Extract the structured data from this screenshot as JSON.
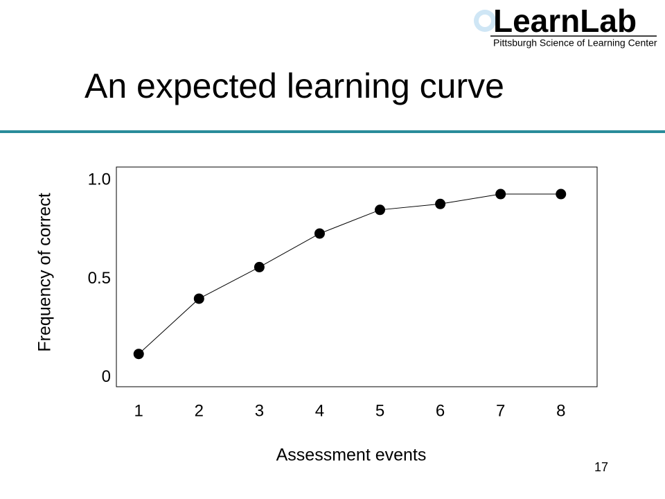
{
  "logo": {
    "name": "LearnLab",
    "subtitle": "Pittsburgh Science of Learning Center"
  },
  "page_number": "17",
  "chart_data": {
    "type": "line",
    "title": "An expected learning curve",
    "x_label": "Assessment events",
    "y_label": "Frequency of correct",
    "x": [
      1,
      2,
      3,
      4,
      5,
      6,
      7,
      8
    ],
    "values": [
      0.12,
      0.4,
      0.56,
      0.73,
      0.85,
      0.88,
      0.93,
      0.93
    ],
    "color": "#000000",
    "xlim": [
      0.63,
      8.6
    ],
    "xticks": [
      1,
      2,
      3,
      4,
      5,
      6,
      7,
      8
    ],
    "ylim": [
      -0.046,
      1.067
    ],
    "yticks": [
      0,
      0.5,
      {
        "value": 1,
        "label": "1.0"
      }
    ],
    "grid": false
  }
}
